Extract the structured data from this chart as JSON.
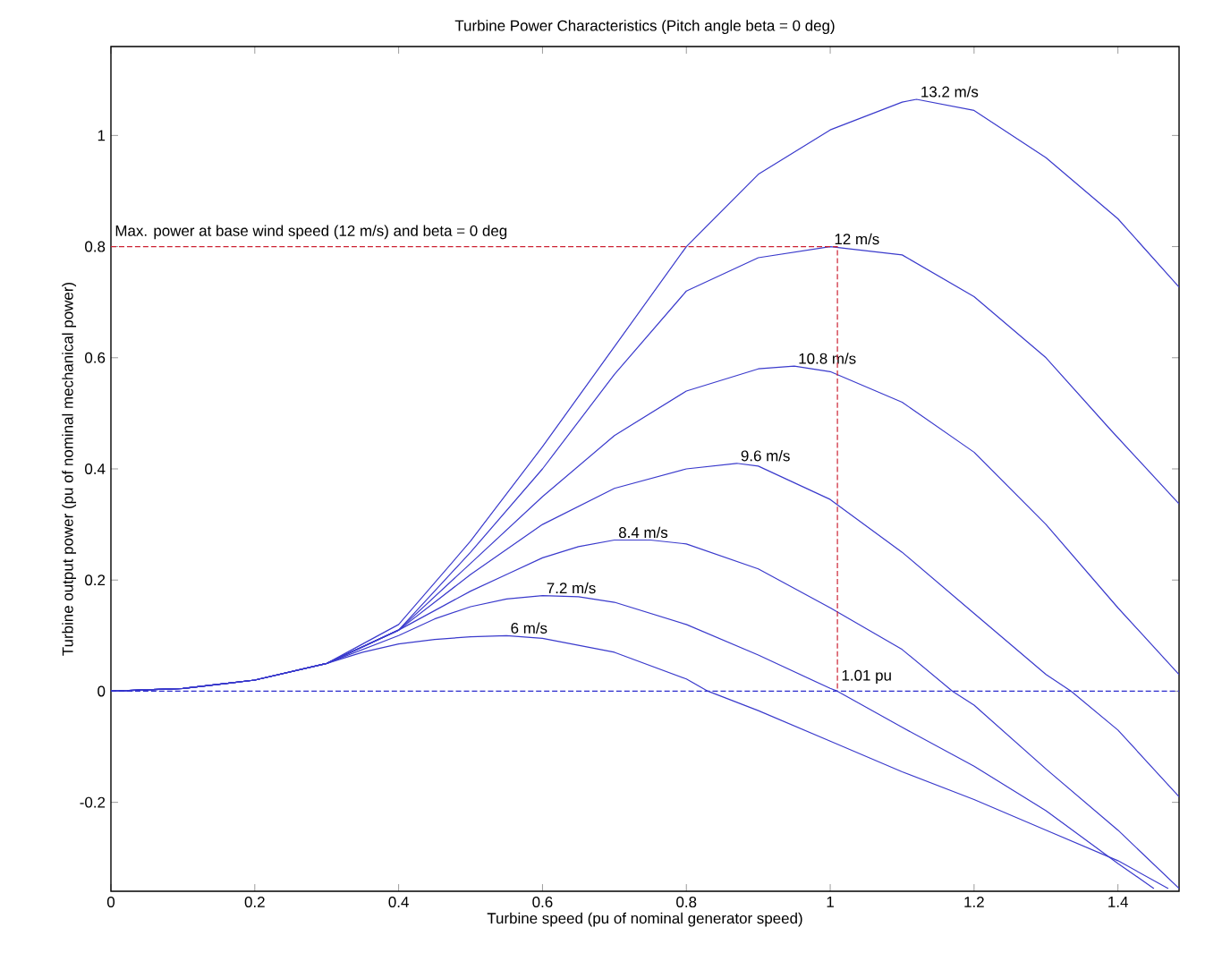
{
  "chart_data": {
    "type": "line",
    "title": "Turbine Power Characteristics (Pitch angle beta = 0 deg)",
    "xlabel": "Turbine speed (pu of nominal generator speed)",
    "ylabel": "Turbine output power (pu of nominal mechanical power)",
    "xlim": [
      0,
      1.485
    ],
    "ylim": [
      -0.36,
      1.16
    ],
    "xticks": [
      0,
      0.2,
      0.4,
      0.6,
      0.8,
      1,
      1.2,
      1.4
    ],
    "yticks": [
      -0.2,
      0,
      0.2,
      0.4,
      0.6,
      0.8,
      1
    ],
    "grid": false,
    "marker": "none",
    "line_style": "solid",
    "series": [
      {
        "name": "6 m/s",
        "color": "#3a3acc",
        "x": [
          0,
          0.1,
          0.2,
          0.3,
          0.35,
          0.4,
          0.45,
          0.5,
          0.55,
          0.6,
          0.7,
          0.8,
          0.83,
          0.9,
          1.0,
          1.1,
          1.2,
          1.3,
          1.4,
          1.47
        ],
        "values": [
          0,
          0.005,
          0.02,
          0.05,
          0.07,
          0.085,
          0.093,
          0.098,
          0.1,
          0.095,
          0.07,
          0.022,
          0,
          -0.035,
          -0.09,
          -0.145,
          -0.195,
          -0.25,
          -0.305,
          -0.355
        ]
      },
      {
        "name": "7.2 m/s",
        "color": "#3a3acc",
        "x": [
          0,
          0.1,
          0.2,
          0.3,
          0.4,
          0.45,
          0.5,
          0.55,
          0.6,
          0.65,
          0.7,
          0.8,
          0.9,
          1.0,
          1.01,
          1.1,
          1.2,
          1.3,
          1.4,
          1.45
        ],
        "values": [
          0,
          0.005,
          0.02,
          0.05,
          0.1,
          0.13,
          0.152,
          0.166,
          0.172,
          0.17,
          0.16,
          0.12,
          0.065,
          0.005,
          0,
          -0.065,
          -0.135,
          -0.215,
          -0.31,
          -0.355
        ]
      },
      {
        "name": "8.4 m/s",
        "color": "#3a3acc",
        "x": [
          0,
          0.1,
          0.2,
          0.3,
          0.4,
          0.45,
          0.5,
          0.55,
          0.6,
          0.65,
          0.7,
          0.75,
          0.8,
          0.9,
          1.0,
          1.1,
          1.17,
          1.2,
          1.3,
          1.4,
          1.485
        ],
        "values": [
          0,
          0.005,
          0.02,
          0.05,
          0.11,
          0.145,
          0.18,
          0.21,
          0.24,
          0.26,
          0.272,
          0.272,
          0.265,
          0.22,
          0.15,
          0.075,
          0,
          -0.025,
          -0.14,
          -0.25,
          -0.355
        ]
      },
      {
        "name": "9.6 m/s",
        "color": "#3a3acc",
        "x": [
          0,
          0.1,
          0.2,
          0.3,
          0.4,
          0.5,
          0.6,
          0.7,
          0.8,
          0.87,
          0.9,
          1.0,
          1.1,
          1.2,
          1.3,
          1.335,
          1.4,
          1.485
        ],
        "values": [
          0,
          0.005,
          0.02,
          0.05,
          0.11,
          0.21,
          0.3,
          0.365,
          0.4,
          0.41,
          0.405,
          0.345,
          0.25,
          0.14,
          0.03,
          0,
          -0.07,
          -0.19
        ]
      },
      {
        "name": "10.8 m/s",
        "color": "#3a3acc",
        "x": [
          0,
          0.1,
          0.2,
          0.3,
          0.4,
          0.5,
          0.6,
          0.7,
          0.8,
          0.9,
          0.95,
          1.0,
          1.1,
          1.2,
          1.3,
          1.4,
          1.485
        ],
        "values": [
          0,
          0.005,
          0.02,
          0.05,
          0.11,
          0.23,
          0.35,
          0.46,
          0.54,
          0.58,
          0.585,
          0.575,
          0.52,
          0.43,
          0.3,
          0.15,
          0.03
        ]
      },
      {
        "name": "12 m/s",
        "color": "#3a3acc",
        "x": [
          0,
          0.1,
          0.2,
          0.3,
          0.4,
          0.5,
          0.6,
          0.7,
          0.8,
          0.9,
          1.0,
          1.1,
          1.2,
          1.3,
          1.39,
          1.485
        ],
        "values": [
          0,
          0.005,
          0.02,
          0.05,
          0.11,
          0.25,
          0.4,
          0.57,
          0.72,
          0.78,
          0.8,
          0.785,
          0.71,
          0.6,
          0.47,
          0.337
        ]
      },
      {
        "name": "13.2 m/s",
        "color": "#3a3acc",
        "x": [
          0,
          0.1,
          0.2,
          0.3,
          0.4,
          0.5,
          0.6,
          0.7,
          0.8,
          0.9,
          1.0,
          1.1,
          1.12,
          1.2,
          1.3,
          1.4,
          1.485
        ],
        "values": [
          0,
          0.005,
          0.02,
          0.05,
          0.12,
          0.27,
          0.44,
          0.62,
          0.8,
          0.93,
          1.01,
          1.06,
          1.065,
          1.045,
          0.96,
          0.85,
          0.727
        ]
      },
      {
        "color": "#cc2233",
        "line_style": "dashed",
        "x": [
          0,
          1.01,
          1.01
        ],
        "values": [
          0.8,
          0.8,
          0
        ]
      }
    ],
    "ref_lines": [
      {
        "axis": "y",
        "value": 0,
        "color": "#2a2acc",
        "line_style": "dashed"
      }
    ],
    "annotations": [
      {
        "text": "Max. power at base wind speed (12 m/s) and beta = 0 deg",
        "x": 0,
        "y": 0.8
      },
      {
        "text": "1.01 pu",
        "x": 1.01,
        "y": 0
      }
    ]
  }
}
